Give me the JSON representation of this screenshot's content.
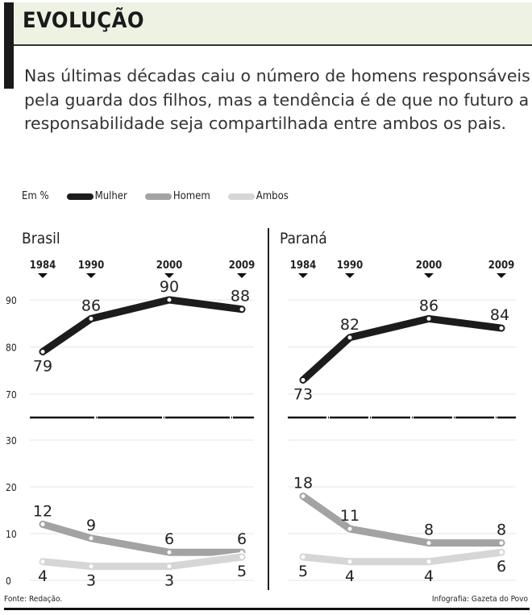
{
  "header": {
    "title": "EVOLUÇÃO",
    "intro": "Nas últimas décadas caiu o número de homens responsáveis pela guarda dos filhos, mas a tendência é de que no futuro a responsabilidade seja compartilhada entre ambos os pais."
  },
  "legend": {
    "unit": "Em %",
    "items": [
      "Mulher",
      "Homem",
      "Ambos"
    ]
  },
  "footer": {
    "source": "Fonte: Redação.",
    "credit": "Infografia: Gazeta do Povo"
  },
  "colors": {
    "Mulher": "#1c1c1c",
    "Homem": "#a3a3a3",
    "Ambos": "#d6d6d6"
  },
  "chart_data": [
    {
      "type": "line",
      "title": "Brasil",
      "x": [
        1984,
        1990,
        2000,
        2009
      ],
      "xticklabels": [
        "1984",
        "1990",
        "2000",
        "2009"
      ],
      "yticks": [
        0,
        10,
        20,
        30,
        70,
        80,
        90
      ],
      "ylim": [
        0,
        92
      ],
      "axis_break": [
        30,
        70
      ],
      "grid": true,
      "series": [
        {
          "name": "Mulher",
          "values": [
            79,
            86,
            90,
            88
          ]
        },
        {
          "name": "Homem",
          "values": [
            12,
            9,
            6,
            6
          ]
        },
        {
          "name": "Ambos",
          "values": [
            4,
            3,
            3,
            5
          ]
        }
      ]
    },
    {
      "type": "line",
      "title": "Paraná",
      "x": [
        1984,
        1990,
        2000,
        2009
      ],
      "xticklabels": [
        "1984",
        "1990",
        "2000",
        "2009"
      ],
      "yticks": [
        0,
        10,
        20,
        30,
        70,
        80,
        90
      ],
      "ylim": [
        0,
        92
      ],
      "axis_break": [
        30,
        70
      ],
      "grid": true,
      "series": [
        {
          "name": "Mulher",
          "values": [
            73,
            82,
            86,
            84
          ]
        },
        {
          "name": "Homem",
          "values": [
            18,
            11,
            8,
            8
          ]
        },
        {
          "name": "Ambos",
          "values": [
            5,
            4,
            4,
            6
          ]
        }
      ]
    }
  ]
}
